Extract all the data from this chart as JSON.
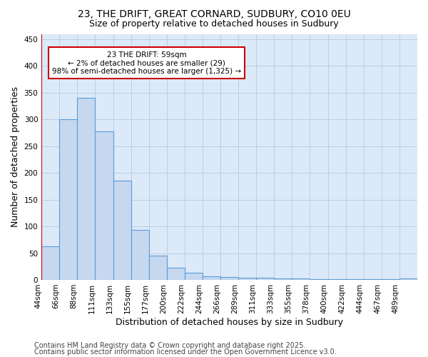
{
  "title1": "23, THE DRIFT, GREAT CORNARD, SUDBURY, CO10 0EU",
  "title2": "Size of property relative to detached houses in Sudbury",
  "xlabel": "Distribution of detached houses by size in Sudbury",
  "ylabel": "Number of detached properties",
  "bar_values": [
    63,
    301,
    340,
    278,
    185,
    94,
    45,
    23,
    13,
    7,
    5,
    4,
    4,
    3,
    2,
    1,
    1,
    1,
    1,
    1,
    3
  ],
  "x_tick_labels": [
    "44sqm",
    "66sqm",
    "88sqm",
    "111sqm",
    "133sqm",
    "155sqm",
    "177sqm",
    "200sqm",
    "222sqm",
    "244sqm",
    "266sqm",
    "289sqm",
    "311sqm",
    "333sqm",
    "355sqm",
    "378sqm",
    "400sqm",
    "422sqm",
    "444sqm",
    "467sqm",
    "489sqm"
  ],
  "bar_color": "#c5d8f0",
  "bar_edgecolor": "#5b9bd5",
  "ylim": [
    0,
    460
  ],
  "yticks": [
    0,
    50,
    100,
    150,
    200,
    250,
    300,
    350,
    400,
    450
  ],
  "marker_label_line1": "23 THE DRIFT: 59sqm",
  "marker_label_line2": "← 2% of detached houses are smaller (29)",
  "marker_label_line3": "98% of semi-detached houses are larger (1,325) →",
  "annotation_box_color": "#ffffff",
  "annotation_box_edge": "#cc0000",
  "vline_color": "#cc0000",
  "background_color": "#dce9f8",
  "footer1": "Contains HM Land Registry data © Crown copyright and database right 2025.",
  "footer2": "Contains public sector information licensed under the Open Government Licence v3.0.",
  "title_fontsize": 10,
  "subtitle_fontsize": 9,
  "axis_label_fontsize": 9,
  "tick_fontsize": 7.5,
  "footer_fontsize": 7
}
